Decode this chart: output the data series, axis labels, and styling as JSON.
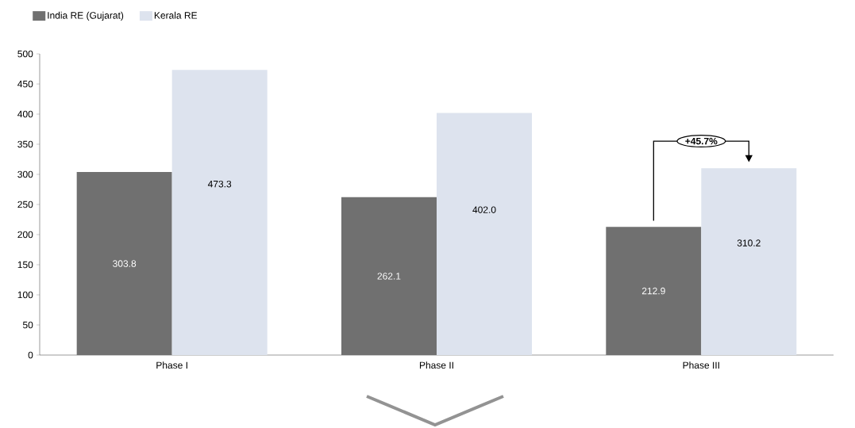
{
  "chart_data": {
    "type": "bar",
    "categories": [
      "Phase I",
      "Phase II",
      "Phase III"
    ],
    "series": [
      {
        "name": "India RE (Gujarat)",
        "color": "#707070",
        "values": [
          303.8,
          262.1,
          212.9
        ],
        "value_labels": [
          "303.8",
          "262.1",
          "212.9"
        ]
      },
      {
        "name": "Kerala RE",
        "color": "#dde3ee",
        "values": [
          473.3,
          402.0,
          310.2
        ],
        "value_labels": [
          "473.3",
          "402.0",
          "310.2"
        ]
      }
    ],
    "ylim": [
      0,
      500
    ],
    "yticks": [
      0,
      50,
      100,
      150,
      200,
      250,
      300,
      350,
      400,
      450,
      500
    ],
    "annotations": [
      {
        "text": "+45.7%",
        "x": "Phase III",
        "y": 310.2
      }
    ],
    "legend": "top left",
    "grid": false
  }
}
